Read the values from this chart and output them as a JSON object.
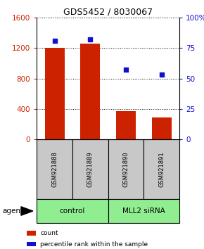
{
  "title": "GDS5452 / 8030067",
  "samples": [
    "GSM921888",
    "GSM921889",
    "GSM921890",
    "GSM921891"
  ],
  "counts": [
    1200,
    1260,
    370,
    290
  ],
  "percentiles": [
    81,
    82,
    57,
    53
  ],
  "groups": [
    "control",
    "control",
    "MLL2 siRNA",
    "MLL2 siRNA"
  ],
  "bar_color": "#CC2200",
  "dot_color": "#1111CC",
  "left_ylim": [
    0,
    1600
  ],
  "right_ylim": [
    0,
    100
  ],
  "left_yticks": [
    0,
    400,
    800,
    1200,
    1600
  ],
  "right_yticks": [
    0,
    25,
    50,
    75,
    100
  ],
  "right_yticklabels": [
    "0",
    "25",
    "50",
    "75",
    "100%"
  ],
  "left_tick_color": "#CC2200",
  "right_tick_color": "#1111CC",
  "legend_count_label": "count",
  "legend_percentile_label": "percentile rank within the sample",
  "bg_color": "#FFFFFF",
  "sample_box_color": "#C8C8C8",
  "group_color_control": "#90EE90",
  "group_color_mll2": "#90EE90",
  "bar_width": 0.55,
  "agent_label": "agent"
}
